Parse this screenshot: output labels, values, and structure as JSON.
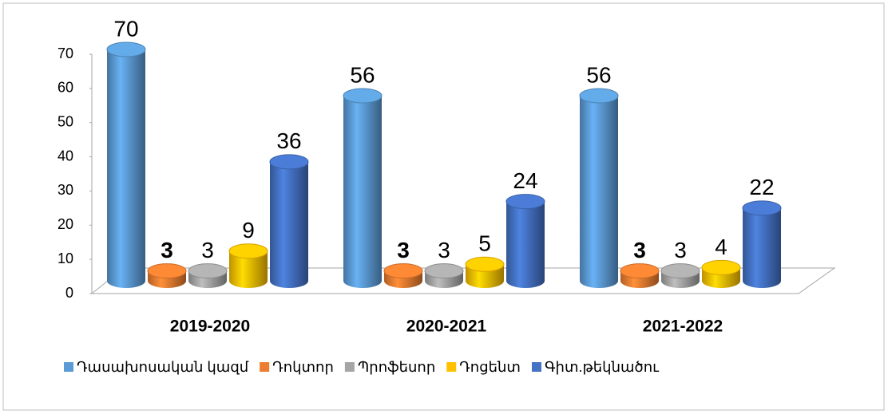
{
  "chart_data": {
    "type": "cylinder",
    "categories": [
      "2019-2020",
      "2020-2021",
      "2021-2022"
    ],
    "series": [
      {
        "name": "Դասախոսական կազմ",
        "color": "#5b9bd5",
        "values": [
          70,
          56,
          56
        ]
      },
      {
        "name": "Դոկտոր",
        "color": "#ed7d31",
        "values": [
          3,
          3,
          3
        ]
      },
      {
        "name": "Պրոֆեսոր",
        "color": "#a5a5a5",
        "values": [
          3,
          3,
          3
        ]
      },
      {
        "name": "Դոցենտ",
        "color": "#ffc000",
        "values": [
          9,
          5,
          4
        ]
      },
      {
        "name": "Գիտ.թեկնածու",
        "color": "#4472c4",
        "values": [
          36,
          24,
          22
        ]
      }
    ],
    "ylim": [
      0,
      70
    ],
    "yticks": [
      0,
      10,
      20,
      30,
      40,
      50,
      60,
      70
    ],
    "legend": "bottom"
  }
}
